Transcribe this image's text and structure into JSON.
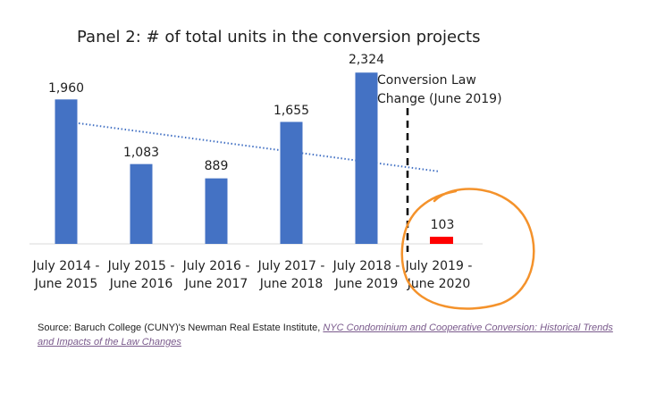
{
  "chart_data": {
    "type": "bar",
    "title": "Panel 2: # of total units in the conversion projects",
    "xlabel": "",
    "ylabel": "",
    "ylim": [
      0,
      2500
    ],
    "grid": false,
    "categories": [
      [
        "July 2014 -",
        "June 2015"
      ],
      [
        "July 2015 -",
        "June 2016"
      ],
      [
        "July 2016 -",
        "June 2017"
      ],
      [
        "July 2017 -",
        "June 2018"
      ],
      [
        "July 2018 -",
        "June 2019"
      ],
      [
        "July 2019 -",
        "June 2020"
      ]
    ],
    "values": [
      1960,
      1083,
      889,
      1655,
      2324,
      103
    ],
    "data_labels": [
      "1,960",
      "1,083",
      "889",
      "1,655",
      "2,324",
      "103"
    ],
    "bar_colors": [
      "#4472c4",
      "#4472c4",
      "#4472c4",
      "#4472c4",
      "#4472c4",
      "#ff0000"
    ],
    "trendline": {
      "style": "dotted",
      "color": "#4472c4",
      "start_value": 1740,
      "end_value": 1015
    },
    "annotation": {
      "lines": [
        "Conversion Law",
        "Change (June 2019)"
      ],
      "divider_style": "dashed",
      "divider_color": "#000000"
    },
    "highlight": {
      "shape": "hand-drawn circle",
      "color": "#f4922b"
    }
  },
  "source": {
    "prefix": "Source: Baruch College (CUNY)'s Newman Real Estate Institute, ",
    "link_text": "NYC Condominium and Cooperative Conversion: Historical Trends and Impacts of the Law Changes"
  }
}
